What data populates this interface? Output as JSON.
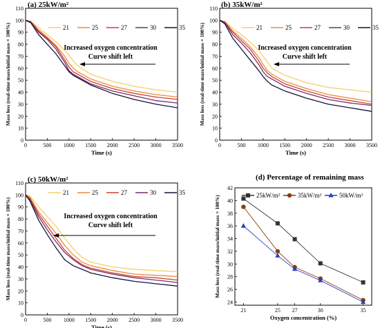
{
  "chart_data": [
    {
      "type": "line",
      "title": "(a) 25kW/m²",
      "xlabel": "Time (s)",
      "ylabel": "Mass loss (real-time mass/initial mass × 100%)",
      "xlim": [
        0,
        3500
      ],
      "ylim": [
        0,
        110
      ],
      "xticks": [
        0,
        500,
        1000,
        1500,
        2000,
        2500,
        3000,
        3500
      ],
      "yticks": [
        0,
        10,
        20,
        30,
        40,
        50,
        60,
        70,
        80,
        90,
        100,
        110
      ],
      "legend_position": "top, horizontal",
      "annotation": [
        "Increased oxygen concentration",
        "Curve shift left"
      ],
      "series": [
        {
          "name": "21",
          "color": "#f2cf6a",
          "x": [
            0,
            120,
            300,
            500,
            700,
            900,
            1000,
            1100,
            1200,
            1500,
            2000,
            2500,
            3000,
            3500
          ],
          "y": [
            100,
            99,
            94,
            88,
            82,
            75,
            71,
            66,
            62,
            55,
            49,
            45,
            42,
            40
          ]
        },
        {
          "name": "25",
          "color": "#ee8a3c",
          "x": [
            0,
            120,
            300,
            500,
            700,
            900,
            1000,
            1100,
            1200,
            1500,
            2000,
            2500,
            3000,
            3500
          ],
          "y": [
            100,
            99,
            92,
            86,
            79,
            70,
            64,
            60,
            57,
            51,
            45,
            41,
            38,
            36
          ]
        },
        {
          "name": "27",
          "color": "#c9422e",
          "x": [
            0,
            120,
            300,
            500,
            700,
            900,
            1000,
            1100,
            1200,
            1500,
            2000,
            2500,
            3000,
            3500
          ],
          "y": [
            100,
            99,
            91,
            85,
            78,
            67,
            61,
            57,
            55,
            49,
            43,
            39,
            36,
            34
          ]
        },
        {
          "name": "30",
          "color": "#7a2a6e",
          "x": [
            0,
            120,
            300,
            500,
            700,
            900,
            1000,
            1100,
            1200,
            1500,
            2000,
            2500,
            3000,
            3500
          ],
          "y": [
            100,
            98,
            90,
            84,
            76,
            65,
            58,
            55,
            53,
            47,
            41,
            37,
            33,
            31
          ]
        },
        {
          "name": "35",
          "color": "#15123a",
          "x": [
            0,
            120,
            300,
            500,
            700,
            900,
            1000,
            1100,
            1200,
            1500,
            2000,
            2500,
            3000,
            3500
          ],
          "y": [
            100,
            98,
            88,
            80,
            72,
            62,
            57,
            54,
            52,
            46,
            39,
            34,
            30,
            27
          ]
        }
      ]
    },
    {
      "type": "line",
      "title": "(b) 35kW/m²",
      "xlabel": "Time (s)",
      "ylabel": "Mass loss (real-time mass/initial mass × 100%)",
      "xlim": [
        0,
        3500
      ],
      "ylim": [
        0,
        110
      ],
      "xticks": [
        0,
        500,
        1000,
        1500,
        2000,
        2500,
        3000,
        3500
      ],
      "yticks": [
        0,
        10,
        20,
        30,
        40,
        50,
        60,
        70,
        80,
        90,
        100,
        110
      ],
      "legend_position": "top, horizontal",
      "annotation": [
        "Increased oxygen concentration",
        "Curve shift left"
      ],
      "series": [
        {
          "name": "21",
          "color": "#f2cf6a",
          "x": [
            0,
            120,
            300,
            500,
            700,
            900,
            1000,
            1100,
            1200,
            1500,
            2000,
            2500,
            3000,
            3500
          ],
          "y": [
            100,
            99,
            93,
            88,
            82,
            75,
            70,
            65,
            60,
            54,
            48,
            44,
            42,
            40
          ]
        },
        {
          "name": "25",
          "color": "#ee8a3c",
          "x": [
            0,
            120,
            300,
            500,
            700,
            900,
            1000,
            1100,
            1200,
            1500,
            2000,
            2500,
            3000,
            3500
          ],
          "y": [
            100,
            99,
            91,
            85,
            78,
            69,
            63,
            58,
            55,
            49,
            43,
            38,
            35,
            32
          ]
        },
        {
          "name": "27",
          "color": "#c9422e",
          "x": [
            0,
            120,
            300,
            500,
            700,
            900,
            1000,
            1100,
            1200,
            1500,
            2000,
            2500,
            3000,
            3500
          ],
          "y": [
            100,
            98,
            90,
            83,
            76,
            66,
            60,
            56,
            53,
            47,
            41,
            36,
            33,
            30
          ]
        },
        {
          "name": "30",
          "color": "#7a2a6e",
          "x": [
            0,
            120,
            300,
            500,
            700,
            900,
            1000,
            1100,
            1200,
            1500,
            2000,
            2500,
            3000,
            3500
          ],
          "y": [
            100,
            98,
            88,
            81,
            73,
            63,
            57,
            53,
            51,
            45,
            39,
            34,
            31,
            29
          ]
        },
        {
          "name": "35",
          "color": "#15123a",
          "x": [
            0,
            120,
            300,
            500,
            700,
            900,
            1000,
            1100,
            1200,
            1500,
            2000,
            2500,
            3000,
            3500
          ],
          "y": [
            100,
            97,
            85,
            76,
            67,
            58,
            53,
            49,
            46,
            41,
            35,
            30,
            27,
            24
          ]
        }
      ]
    },
    {
      "type": "line",
      "title": "(c) 50kW/m²",
      "xlabel": "Time (s)",
      "ylabel": "Mass loss (real-time mass/initial mass × 100%)",
      "xlim": [
        0,
        3500
      ],
      "ylim": [
        0,
        110
      ],
      "xticks": [
        0,
        500,
        1000,
        1500,
        2000,
        2500,
        3000,
        3500
      ],
      "yticks": [
        0,
        10,
        20,
        30,
        40,
        50,
        60,
        70,
        80,
        90,
        100,
        110
      ],
      "legend_position": "top, horizontal",
      "annotation": [
        "Increased oxygen concentration",
        "Curve shift left"
      ],
      "series": [
        {
          "name": "21",
          "color": "#f2cf6a",
          "x": [
            0,
            100,
            300,
            500,
            700,
            900,
            1100,
            1300,
            1500,
            2000,
            2500,
            3000,
            3500
          ],
          "y": [
            100,
            99,
            90,
            82,
            74,
            64,
            55,
            48,
            44,
            40,
            38,
            37,
            36
          ]
        },
        {
          "name": "25",
          "color": "#ee8a3c",
          "x": [
            0,
            100,
            300,
            500,
            700,
            900,
            1100,
            1300,
            1500,
            2000,
            2500,
            3000,
            3500
          ],
          "y": [
            100,
            98,
            86,
            77,
            68,
            58,
            50,
            44,
            41,
            37,
            34,
            33,
            32
          ]
        },
        {
          "name": "27",
          "color": "#c9422e",
          "x": [
            0,
            100,
            300,
            500,
            700,
            900,
            1100,
            1300,
            1500,
            2000,
            2500,
            3000,
            3500
          ],
          "y": [
            100,
            97,
            84,
            74,
            64,
            54,
            47,
            42,
            39,
            35,
            32,
            31,
            29
          ]
        },
        {
          "name": "30",
          "color": "#7a2a6e",
          "x": [
            0,
            100,
            300,
            500,
            700,
            900,
            1100,
            1300,
            1500,
            2000,
            2500,
            3000,
            3500
          ],
          "y": [
            100,
            96,
            82,
            71,
            61,
            52,
            46,
            41,
            38,
            34,
            31,
            29,
            27
          ]
        },
        {
          "name": "35",
          "color": "#15123a",
          "x": [
            0,
            100,
            300,
            500,
            700,
            900,
            1100,
            1300,
            1500,
            2000,
            2500,
            3000,
            3500
          ],
          "y": [
            100,
            95,
            79,
            67,
            56,
            46,
            41,
            38,
            35,
            31,
            28,
            26,
            24
          ]
        }
      ]
    },
    {
      "type": "line",
      "title": "(d) Percentage of remaining mass",
      "xlabel": "Oxygen concentration (%)",
      "ylabel": "Mass loss (real-time mass/initial mass × 100%)",
      "xlim": [
        20,
        36
      ],
      "ylim": [
        23.5,
        42
      ],
      "xticks": [
        21,
        25,
        27,
        30,
        35
      ],
      "yticks": [
        24,
        26,
        28,
        30,
        32,
        34,
        36,
        38,
        40,
        42
      ],
      "legend_position": "top, horizontal",
      "series": [
        {
          "name": "25kW/m²",
          "color": "#333333",
          "marker": "square",
          "x": [
            21,
            25,
            27,
            30,
            35
          ],
          "y": [
            40.3,
            36.4,
            33.9,
            30.1,
            27.1
          ]
        },
        {
          "name": "35kW/m²",
          "color": "#8b3a12",
          "marker": "circle",
          "x": [
            21,
            25,
            27,
            30,
            35
          ],
          "y": [
            39.0,
            32.0,
            29.5,
            27.7,
            24.3
          ]
        },
        {
          "name": "50kW/m²",
          "color": "#2a3fbf",
          "marker": "triangle",
          "x": [
            21,
            25,
            27,
            30,
            35
          ],
          "y": [
            36.0,
            31.3,
            29.2,
            27.4,
            24.0
          ]
        }
      ]
    }
  ]
}
